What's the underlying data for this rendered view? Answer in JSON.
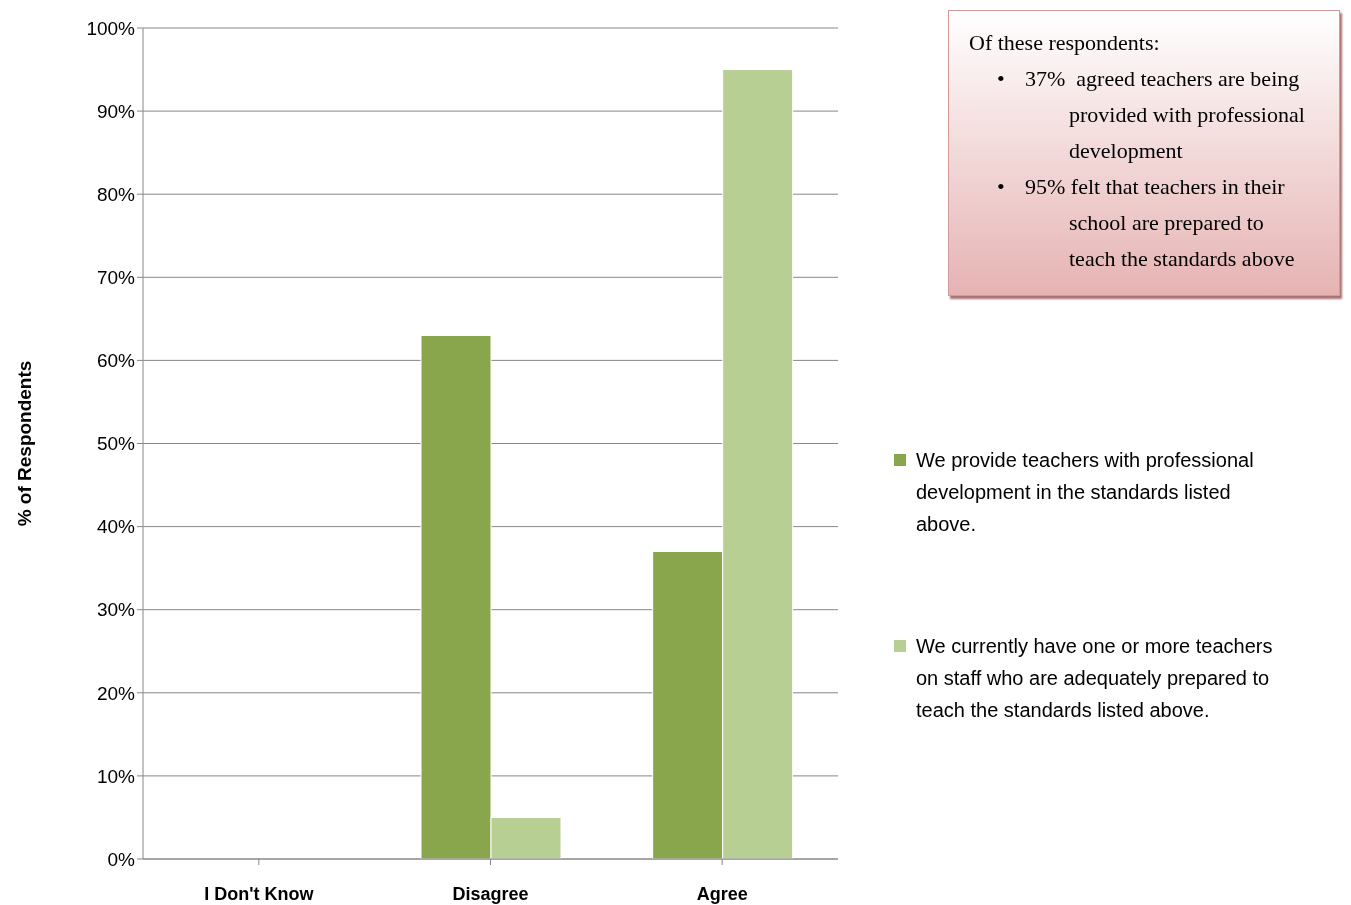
{
  "chart_data": {
    "type": "bar",
    "ylabel": "% of Respondents",
    "categories": [
      "I Don't Know",
      "Disagree",
      "Agree"
    ],
    "series": [
      {
        "name": "We provide teachers with professional development in the standards listed above.",
        "color": "#8aa64d",
        "values": [
          0,
          63,
          37
        ]
      },
      {
        "name": "We currently have one or more teachers on staff who are adequately prepared to teach the standards listed above.",
        "color": "#b8cf94",
        "values": [
          0,
          5,
          95
        ]
      }
    ],
    "ylim": [
      0,
      100
    ],
    "yticks": [
      {
        "value": 0,
        "label": "0%"
      },
      {
        "value": 10,
        "label": "10%"
      },
      {
        "value": 20,
        "label": "20%"
      },
      {
        "value": 30,
        "label": "30%"
      },
      {
        "value": 40,
        "label": "40%"
      },
      {
        "value": 50,
        "label": "50%"
      },
      {
        "value": 60,
        "label": "60%"
      },
      {
        "value": 70,
        "label": "70%"
      },
      {
        "value": 80,
        "label": "80%"
      },
      {
        "value": 90,
        "label": "90%"
      },
      {
        "value": 100,
        "label": "100%"
      }
    ],
    "grid": "y",
    "legend": "right",
    "annotations": [
      "Of these respondents:",
      "•\t37%  agreed teachers are being provided with professional development",
      "•\t95% felt that teachers in their school are prepared to teach the standards above"
    ]
  }
}
